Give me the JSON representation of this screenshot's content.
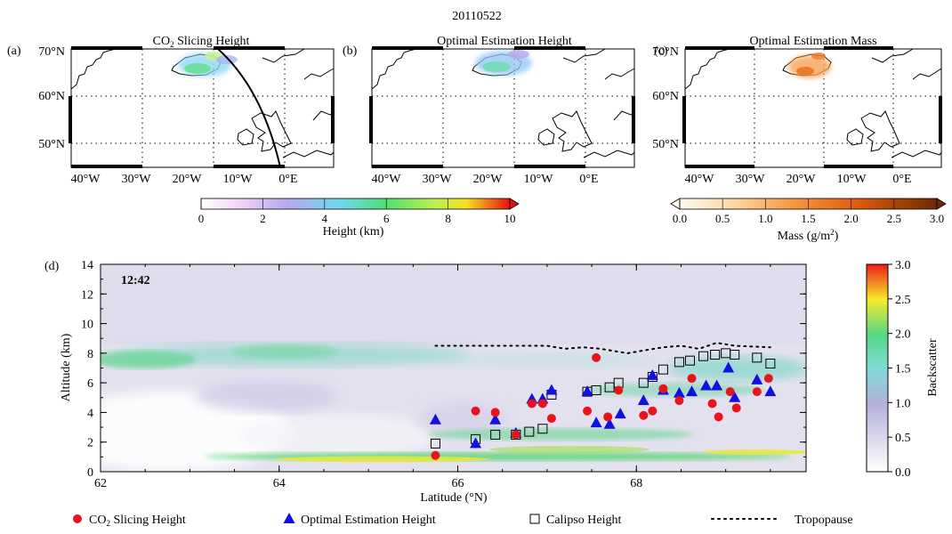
{
  "figure": {
    "date": "20110522",
    "panels": [
      {
        "letter": "(a)",
        "title_pre": "CO",
        "title_sub": "2",
        "title_post": " Slicing Height"
      },
      {
        "letter": "(b)",
        "title_pre": "Optimal Estimation Height",
        "title_sub": "",
        "title_post": ""
      },
      {
        "letter": "(c)",
        "title_pre": "Optimal Estimation Mass",
        "title_sub": "",
        "title_post": ""
      }
    ],
    "map_lat_labels": [
      "70°N",
      "60°N",
      "50°N"
    ],
    "map_lon_labels": [
      "40°W",
      "30°W",
      "20°W",
      "10°W",
      "0°E"
    ],
    "height_colorbar": {
      "label": "Height (km)",
      "ticks": [
        "0",
        "2",
        "4",
        "6",
        "8",
        "10"
      ]
    },
    "mass_colorbar": {
      "label_pre": "Mass (g/m",
      "label_sup": "2",
      "label_post": ")",
      "ticks": [
        "0.0",
        "0.5",
        "1.0",
        "1.5",
        "2.0",
        "2.5",
        "3.0"
      ]
    },
    "panel_d": {
      "letter": "(d)",
      "time": "12:42",
      "xlabel": "Latitude (°N)",
      "ylabel": "Altitude (km)",
      "xticks": [
        "62",
        "64",
        "66",
        "68"
      ],
      "yticks": [
        "0",
        "2",
        "4",
        "6",
        "8",
        "10",
        "12",
        "14"
      ],
      "backscatter_colorbar": {
        "label": "Backscatter",
        "ticks": [
          "0.0",
          "0.5",
          "1.0",
          "1.5",
          "2.0",
          "2.5",
          "3.0"
        ]
      }
    },
    "legend": [
      {
        "text_pre": "CO",
        "text_sub": "2",
        "text_post": " Slicing Height",
        "marker": "circle",
        "color": "#e8141c"
      },
      {
        "text_pre": "Optimal Estimation Height",
        "text_sub": "",
        "text_post": "",
        "marker": "triangle",
        "color": "#1010e0"
      },
      {
        "text_pre": "Calipso Height",
        "text_sub": "",
        "text_post": "",
        "marker": "square",
        "color": "#000000"
      },
      {
        "text_pre": "Tropopause",
        "text_sub": "",
        "text_post": "",
        "marker": "dotted-line",
        "color": "#000000"
      }
    ]
  },
  "chart_data": {
    "type": "scatter",
    "xlabel": "Latitude (°N)",
    "ylabel": "Altitude (km)",
    "xlim": [
      62,
      69.9
    ],
    "ylim": [
      0,
      14
    ],
    "grid": false,
    "series": [
      {
        "name": "CO2 Slicing Height",
        "marker": "circle",
        "color": "#e8141c",
        "x": [
          65.75,
          66.2,
          66.42,
          66.65,
          66.83,
          66.95,
          67.05,
          67.45,
          67.55,
          67.68,
          67.8,
          68.08,
          68.18,
          68.3,
          68.48,
          68.62,
          68.85,
          68.92,
          69.05,
          69.12,
          69.35,
          69.48
        ],
        "y": [
          1.1,
          4.1,
          4.0,
          2.5,
          4.6,
          4.6,
          3.6,
          4.1,
          7.7,
          3.7,
          5.5,
          3.8,
          4.1,
          5.6,
          4.8,
          6.3,
          4.6,
          3.7,
          5.4,
          4.3,
          5.4,
          6.3
        ]
      },
      {
        "name": "Optimal Estimation Height",
        "marker": "triangle",
        "color": "#1010e0",
        "x": [
          65.75,
          66.2,
          66.42,
          66.65,
          66.83,
          66.95,
          67.05,
          67.45,
          67.55,
          67.7,
          67.82,
          68.08,
          68.18,
          68.3,
          68.48,
          68.62,
          68.78,
          68.9,
          69.03,
          69.1,
          69.35,
          69.5
        ],
        "y": [
          3.5,
          1.9,
          3.5,
          2.6,
          4.9,
          4.9,
          5.5,
          5.4,
          3.3,
          3.2,
          3.9,
          4.8,
          6.5,
          5.5,
          5.3,
          5.4,
          5.8,
          5.8,
          7.0,
          5.0,
          6.2,
          5.4
        ]
      },
      {
        "name": "Calipso Height",
        "marker": "square",
        "color": "#000000",
        "x": [
          65.75,
          66.2,
          66.42,
          66.65,
          66.8,
          66.95,
          67.05,
          67.45,
          67.55,
          67.7,
          67.8,
          68.08,
          68.18,
          68.3,
          68.48,
          68.6,
          68.75,
          68.88,
          69.0,
          69.1,
          69.35,
          69.5
        ],
        "y": [
          1.9,
          2.2,
          2.5,
          2.5,
          2.7,
          2.9,
          5.2,
          5.4,
          5.5,
          5.7,
          6.0,
          6.0,
          6.4,
          6.9,
          7.4,
          7.5,
          7.8,
          7.9,
          8.0,
          7.9,
          7.7,
          7.3
        ]
      },
      {
        "name": "Tropopause",
        "marker": "dotted-line",
        "color": "#000000",
        "x": [
          65.75,
          66.0,
          66.5,
          67.0,
          67.2,
          67.4,
          67.6,
          67.9,
          68.1,
          68.3,
          68.5,
          68.7,
          68.9,
          69.1,
          69.5
        ],
        "y": [
          8.5,
          8.5,
          8.5,
          8.5,
          8.3,
          8.4,
          8.3,
          8.0,
          8.2,
          8.4,
          8.5,
          8.3,
          8.7,
          8.5,
          8.4
        ]
      }
    ]
  }
}
